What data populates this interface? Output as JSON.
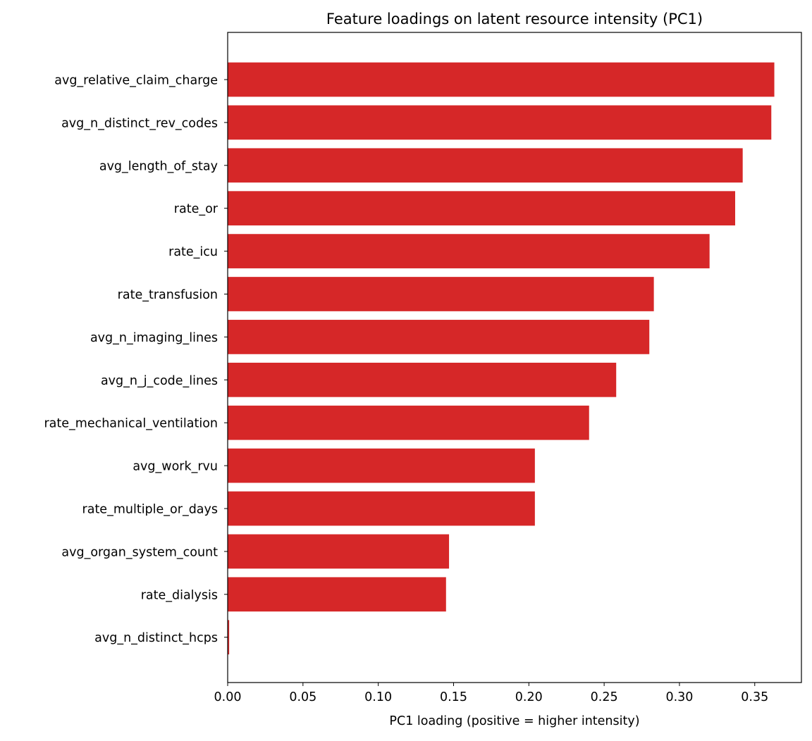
{
  "chart_data": {
    "type": "bar",
    "orientation": "horizontal",
    "title": "Feature loadings on latent resource intensity (PC1)",
    "xlabel": "PC1 loading (positive = higher intensity)",
    "ylabel": "",
    "xlim": [
      0,
      0.381
    ],
    "xticks": [
      "0.00",
      "0.05",
      "0.10",
      "0.15",
      "0.20",
      "0.25",
      "0.30",
      "0.35"
    ],
    "grid": false,
    "bar_color": "#d62728",
    "categories": [
      "avg_relative_claim_charge",
      "avg_n_distinct_rev_codes",
      "avg_length_of_stay",
      "rate_or",
      "rate_icu",
      "rate_transfusion",
      "avg_n_imaging_lines",
      "avg_n_j_code_lines",
      "rate_mechanical_ventilation",
      "avg_work_rvu",
      "rate_multiple_or_days",
      "avg_organ_system_count",
      "rate_dialysis",
      "avg_n_distinct_hcps"
    ],
    "values": [
      0.363,
      0.361,
      0.342,
      0.337,
      0.32,
      0.283,
      0.28,
      0.258,
      0.24,
      0.204,
      0.204,
      0.147,
      0.145,
      0.001
    ]
  }
}
